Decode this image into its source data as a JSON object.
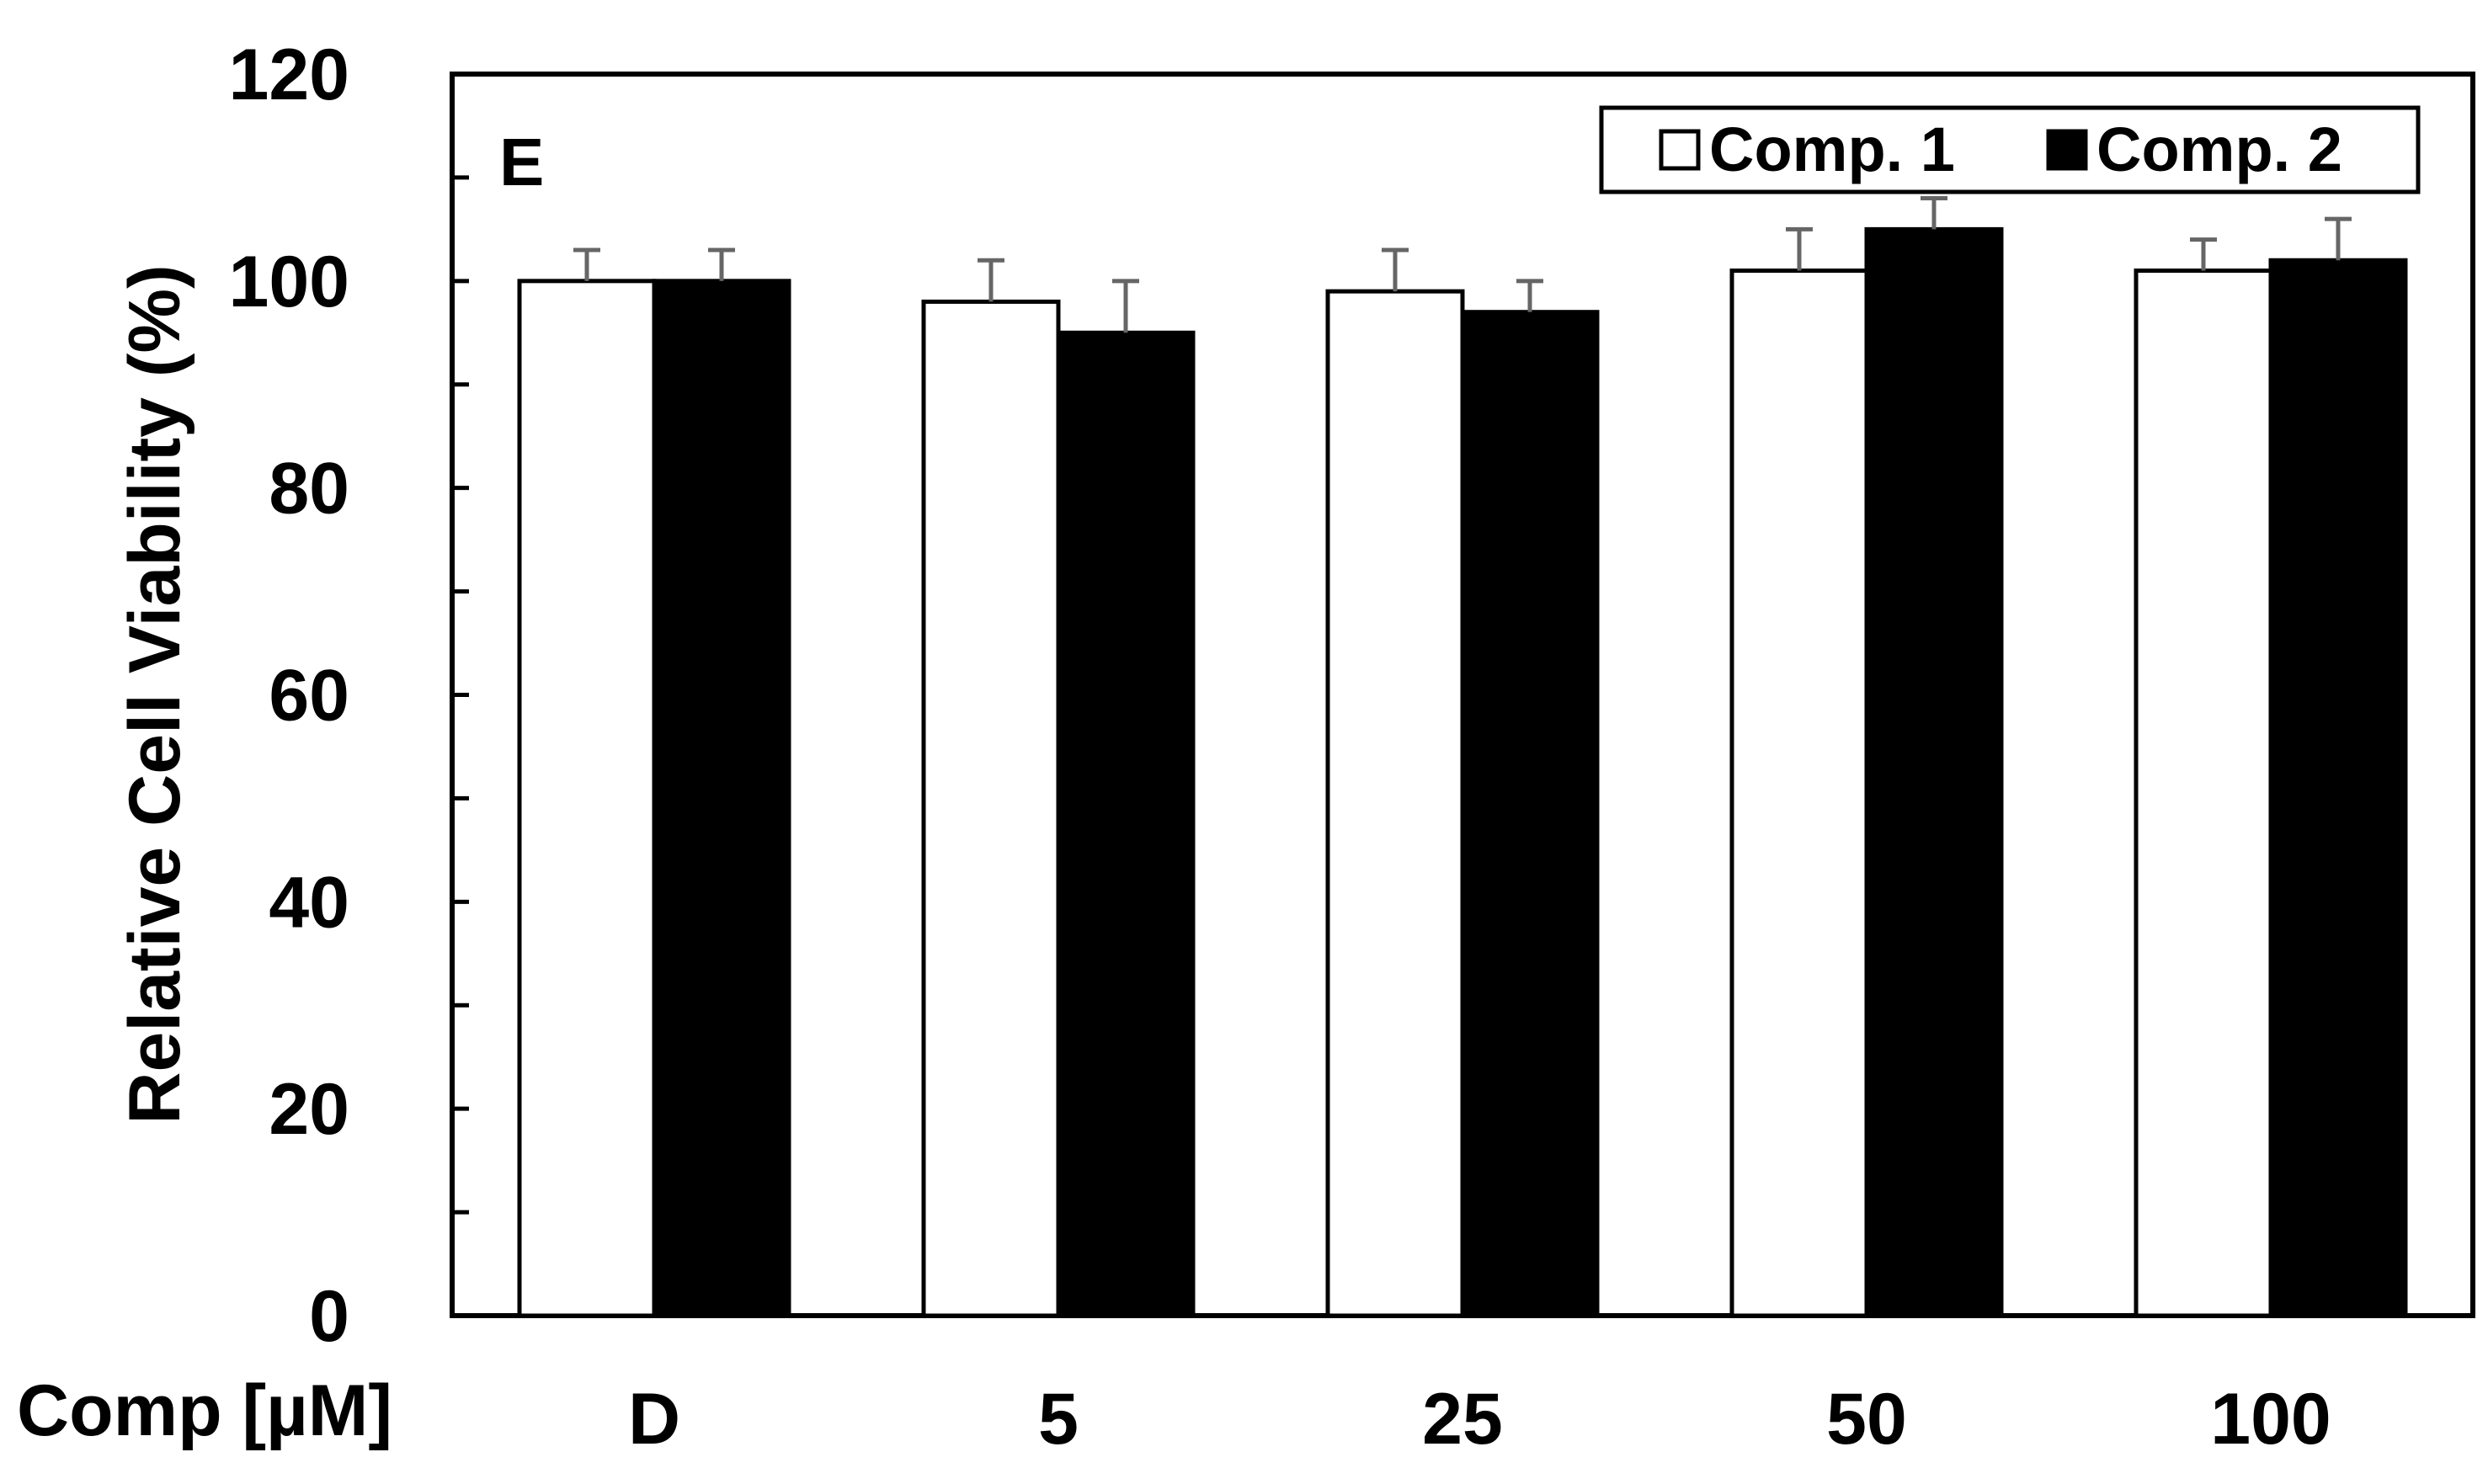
{
  "chart_data": {
    "type": "bar",
    "panel_label": "E",
    "title": "",
    "xlabel": "Comp [µM]",
    "ylabel": "Relative Cell Viability (%)",
    "categories": [
      "D",
      "5",
      "25",
      "50",
      "100"
    ],
    "series": [
      {
        "name": "Comp. 1",
        "color": "#ffffff",
        "values": [
          100,
          98,
          99,
          101,
          101
        ],
        "errors": [
          3,
          4,
          4,
          4,
          3
        ]
      },
      {
        "name": "Comp. 2",
        "color": "#000000",
        "values": [
          100,
          95,
          97,
          105,
          102
        ],
        "errors": [
          3,
          5,
          3,
          3,
          4
        ]
      }
    ],
    "ylim": [
      0,
      120
    ],
    "yticks": [
      0,
      20,
      40,
      60,
      80,
      100,
      120
    ],
    "grid": false,
    "legend_position": "top-right",
    "error_bar_color": "#666666"
  }
}
